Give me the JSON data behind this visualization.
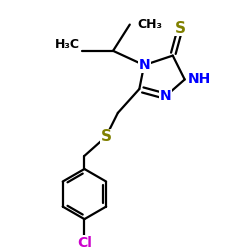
{
  "background_color": "#ffffff",
  "atom_colors": {
    "N": "#0000ff",
    "S": "#808000",
    "Cl": "#cc00cc",
    "C": "#000000"
  },
  "bond_color": "#000000",
  "bond_width": 1.6,
  "xlim": [
    0,
    10
  ],
  "ylim": [
    0,
    10
  ]
}
